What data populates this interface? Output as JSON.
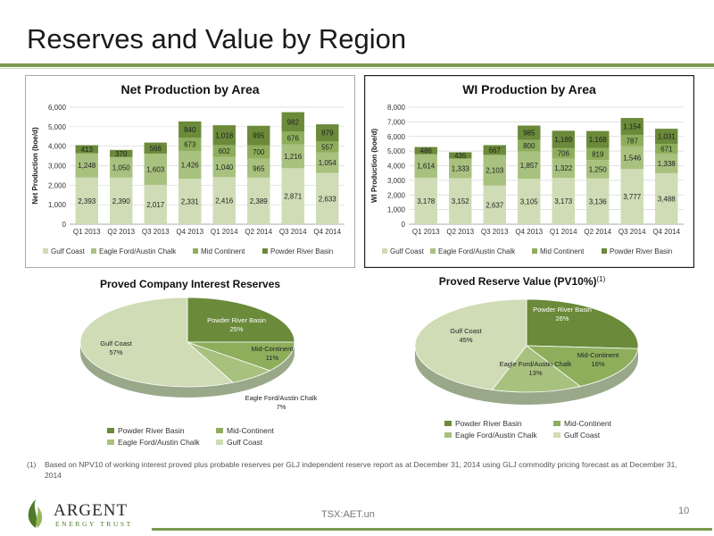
{
  "page": {
    "title": "Reserves and Value by Region",
    "footnote_marker": "(1)",
    "footnote": "Based on NPV10 of working interest proved plus probable reserves per GLJ independent reserve report as at December 31, 2014 using GLJ commodity pricing forecast as at December 31, 2014",
    "logo_name": "ARGENT",
    "logo_sub": "ENERGY TRUST",
    "ticker": "TSX:AET.un",
    "page_number": "10"
  },
  "colors": {
    "gulf_coast": "#cfdcb5",
    "eagle_ford": "#a8c17f",
    "mid_continent": "#8eae5c",
    "powder_river": "#6b8a3a",
    "accent": "#7c9a4e"
  },
  "chart_data": [
    {
      "type": "bar",
      "stacked": true,
      "title": "Net Production by Area",
      "ylabel": "Net Production (boe/d)",
      "ylim": [
        0,
        6000
      ],
      "yticks": [
        "0",
        "1,000",
        "2,000",
        "3,000",
        "4,000",
        "5,000",
        "6,000"
      ],
      "categories": [
        "Q1 2013",
        "Q2 2013",
        "Q3 2013",
        "Q4 2013",
        "Q1 2014",
        "Q2 2014",
        "Q3 2014",
        "Q4 2014"
      ],
      "series": [
        {
          "name": "Gulf Coast",
          "values": [
            2393,
            2390,
            2017,
            2331,
            2416,
            2389,
            2871,
            2633
          ],
          "labels": [
            "2,393",
            "2,390",
            "2,017",
            "2,331",
            "2,416",
            "2,389",
            "2,871",
            "2,633"
          ]
        },
        {
          "name": "Eagle Ford/Austin Chalk",
          "values": [
            1248,
            1050,
            1603,
            1426,
            1040,
            965,
            1216,
            1054
          ],
          "labels": [
            "1,248",
            "1,050",
            "1,603",
            "1,426",
            "1,040",
            "965",
            "1,216",
            "1,054"
          ]
        },
        {
          "name": "Mid Continent",
          "values": [
            0,
            0,
            0,
            673,
            602,
            700,
            676,
            557
          ],
          "labels": [
            "",
            "",
            "",
            "673",
            "602",
            "700",
            "676",
            "557"
          ]
        },
        {
          "name": "Powder River Basin",
          "values": [
            413,
            370,
            566,
            840,
            1018,
            995,
            982,
            879
          ],
          "labels": [
            "413",
            "370",
            "566",
            "840",
            "1,018",
            "995",
            "982",
            "879"
          ]
        }
      ]
    },
    {
      "type": "bar",
      "stacked": true,
      "title": "WI Production by Area",
      "ylabel": "WI Production (boe/d)",
      "ylim": [
        0,
        8000
      ],
      "yticks": [
        "0",
        "1,000",
        "2,000",
        "3,000",
        "4,000",
        "5,000",
        "6,000",
        "7,000",
        "8,000"
      ],
      "categories": [
        "Q1 2013",
        "Q2 2013",
        "Q3 2013",
        "Q4 2013",
        "Q1 2014",
        "Q2 2014",
        "Q3 2014",
        "Q4 2014"
      ],
      "series": [
        {
          "name": "Gulf Coast",
          "values": [
            3178,
            3152,
            2637,
            3105,
            3173,
            3136,
            3777,
            3488
          ],
          "labels": [
            "3,178",
            "3,152",
            "2,637",
            "3,105",
            "3,173",
            "3,136",
            "3,777",
            "3,488"
          ]
        },
        {
          "name": "Eagle Ford/Austin Chalk",
          "values": [
            1614,
            1333,
            2103,
            1857,
            1322,
            1250,
            1546,
            1338
          ],
          "labels": [
            "1,614",
            "1,333",
            "2,103",
            "1,857",
            "1,322",
            "1,250",
            "1,546",
            "1,338"
          ]
        },
        {
          "name": "Mid Continent",
          "values": [
            0,
            0,
            0,
            800,
            706,
            819,
            787,
            671
          ],
          "labels": [
            "",
            "",
            "",
            "800",
            "706",
            "819",
            "787",
            "671"
          ]
        },
        {
          "name": "Powder River Basin",
          "values": [
            486,
            435,
            667,
            985,
            1189,
            1168,
            1154,
            1031
          ],
          "labels": [
            "486",
            "435",
            "667",
            "985",
            "1,189",
            "1,168",
            "1,154",
            "1,031"
          ]
        }
      ]
    },
    {
      "type": "pie",
      "title": "Proved Company Interest Reserves",
      "slices": [
        {
          "name": "Powder River Basin",
          "value": 25,
          "label_name": "Powder River Basin",
          "label_pct": "25%"
        },
        {
          "name": "Mid-Continent",
          "value": 11,
          "label_name": "Mid-Continent",
          "label_pct": "11%"
        },
        {
          "name": "Eagle Ford/Austin Chalk",
          "value": 7,
          "label_name": "Eagle Ford/Austin Chalk",
          "label_pct": "7%"
        },
        {
          "name": "Gulf Coast",
          "value": 57,
          "label_name": "Gulf Coast",
          "label_pct": "57%"
        }
      ],
      "legend": [
        "Powder River Basin",
        "Mid-Continent",
        "Eagle Ford/Austin Chalk",
        "Gulf Coast"
      ]
    },
    {
      "type": "pie",
      "title": "Proved Reserve Value (PV10%)",
      "title_sup": "(1)",
      "slices": [
        {
          "name": "Powder River Basin",
          "value": 26,
          "label_name": "Powder River Basin",
          "label_pct": "26%"
        },
        {
          "name": "Mid-Continent",
          "value": 16,
          "label_name": "Mid-Continent",
          "label_pct": "16%"
        },
        {
          "name": "Eagle Ford/Austin Chalk",
          "value": 13,
          "label_name": "Eagle Ford/Austin Chalk",
          "label_pct": "13%"
        },
        {
          "name": "Gulf Coast",
          "value": 45,
          "label_name": "Gulf Coast",
          "label_pct": "45%"
        }
      ],
      "legend": [
        "Powder River Basin",
        "Mid-Continent",
        "Eagle Ford/Austin Chalk",
        "Gulf Coast"
      ]
    }
  ]
}
